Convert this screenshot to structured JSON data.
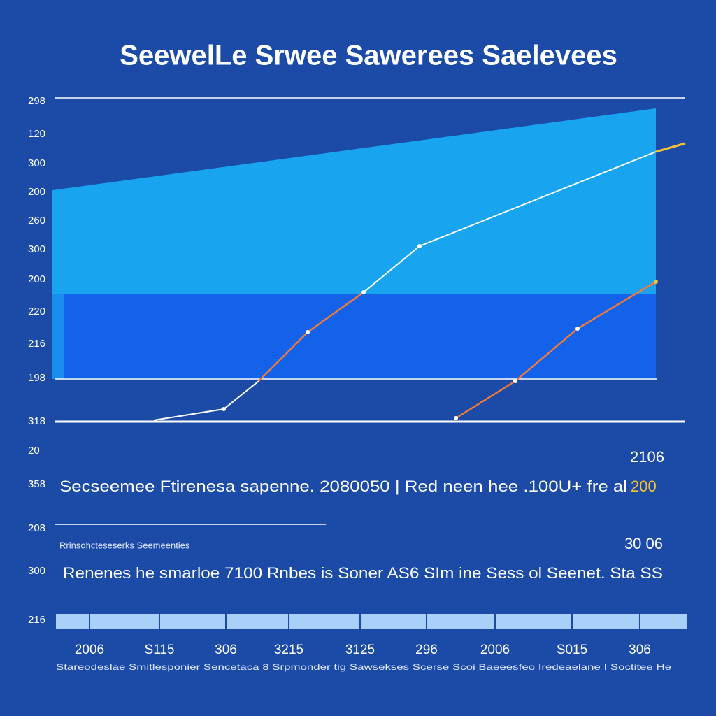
{
  "title": "SeewelLe Srwee Sawerees Saelevees",
  "axis_labels": [
    "298",
    "120",
    "300",
    "200",
    "260",
    "300",
    "200",
    "220",
    "216",
    "198",
    "318",
    "20",
    "358",
    "208",
    "300",
    "216"
  ],
  "summary": {
    "value": "2106",
    "text": "Secseemee Ftirenesa sapenne. 2080050 | Red neen hee .100U+ fre al",
    "highlight": "200"
  },
  "note": {
    "text": "Rrinsohcteseserks Seemeenties",
    "value": "30 06"
  },
  "description": "Renenes he smarloe 7100 Rnbes is Soner AS6 SIm ine Sess ol Seenet. Sta SS",
  "timeline": {
    "labels": [
      "2006",
      "S115",
      "306",
      "3215",
      "3125",
      "296",
      "2006",
      "S015",
      "306"
    ],
    "caption": "Stareodeslae Smitlesponier Sencetaca 8 Srpmonder tig Sawsekses Scerse Scoi Baeeesfeo Iredeaelane I Soctitee He"
  }
}
